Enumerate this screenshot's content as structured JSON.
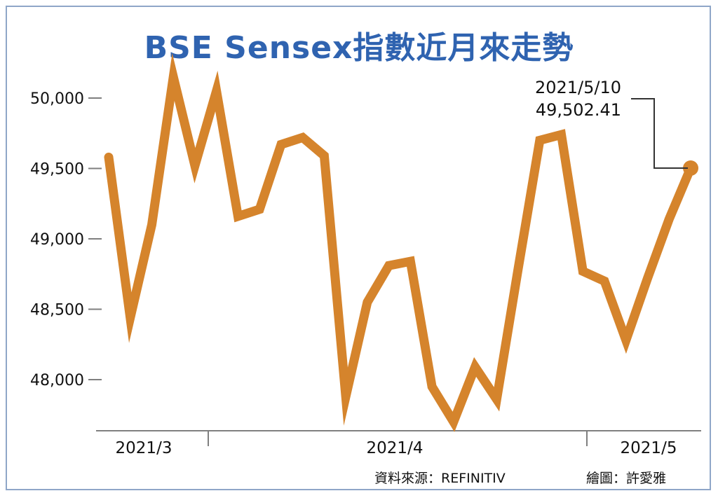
{
  "title": "BSE Sensex指數近月來走勢",
  "footer": {
    "source": "資料來源：REFINITIV",
    "credit": "繪圖：許愛雅"
  },
  "colors": {
    "line": "#d5842c",
    "title": "#2f63b0",
    "axis": "#7f7f7f",
    "frame": "#8fa6c8"
  },
  "chart_data": {
    "type": "line",
    "title": "BSE Sensex指數近月來走勢",
    "xlabel": "",
    "ylabel": "",
    "ylim": [
      47700,
      50350
    ],
    "yticks": [
      48000,
      48500,
      49000,
      49500,
      50000
    ],
    "ytick_labels": [
      "48,000",
      "48,500",
      "49,000",
      "49,500",
      "50,000"
    ],
    "xtick_labels": [
      "2021/3",
      "2021/4",
      "2021/5"
    ],
    "grid": false,
    "series": [
      {
        "values": [
          49580,
          48440,
          49100,
          50150,
          49520,
          50050,
          49160,
          49210,
          49670,
          49720,
          49590,
          47880,
          48550,
          48810,
          48840,
          47950,
          47700,
          48090,
          47860,
          48790,
          49700,
          49740,
          48770,
          48700,
          48280,
          48720,
          49140,
          49502.41
        ]
      }
    ],
    "annotation": {
      "date": "2021/5/10",
      "value": "49,502.41"
    }
  }
}
